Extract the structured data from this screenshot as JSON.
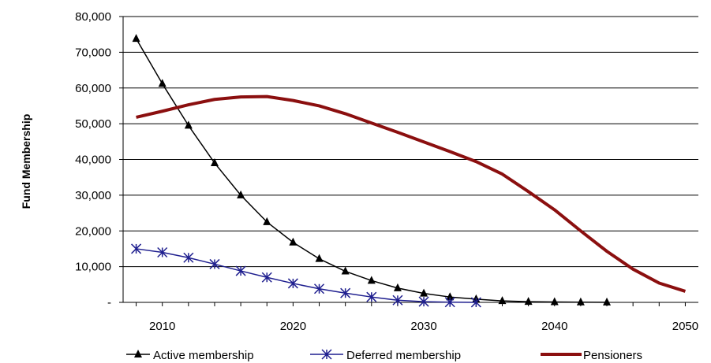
{
  "chart_data": {
    "type": "line",
    "ylabel": "Fund Membership",
    "xlabel": "",
    "xlim": [
      2007,
      2051
    ],
    "ylim": [
      0,
      80000
    ],
    "grid": "horizontal",
    "legend_position": "bottom",
    "x_ticks": [
      2010,
      2020,
      2030,
      2040,
      2050
    ],
    "x_tick_labels": [
      "2010",
      "2020",
      "2030",
      "2040",
      "2050"
    ],
    "y_ticks": [
      0,
      10000,
      20000,
      30000,
      40000,
      50000,
      60000,
      70000,
      80000
    ],
    "y_tick_labels": [
      "-",
      "10,000",
      "20,000",
      "30,000",
      "40,000",
      "50,000",
      "60,000",
      "70,000",
      "80,000"
    ],
    "series": [
      {
        "name": "Active membership",
        "color": "#000000",
        "marker": "triangle",
        "x": [
          2008,
          2010,
          2012,
          2014,
          2016,
          2018,
          2020,
          2022,
          2024,
          2026,
          2028,
          2030,
          2032,
          2034,
          2036,
          2038,
          2040,
          2042,
          2044
        ],
        "values": [
          73800,
          61200,
          49500,
          39000,
          30000,
          22500,
          16800,
          12200,
          8700,
          6100,
          4000,
          2500,
          1500,
          900,
          400,
          200,
          100,
          50,
          20
        ]
      },
      {
        "name": "Deferred membership",
        "color": "#1f1f8f",
        "marker": "asterisk",
        "x": [
          2008,
          2010,
          2012,
          2014,
          2016,
          2018,
          2020,
          2022,
          2024,
          2026,
          2028,
          2030,
          2032,
          2034
        ],
        "values": [
          15000,
          14000,
          12500,
          10700,
          8800,
          7000,
          5300,
          3800,
          2600,
          1500,
          600,
          200,
          50,
          10
        ]
      },
      {
        "name": "Pensioners",
        "color": "#8b0f0f",
        "marker": "none",
        "x": [
          2008,
          2010,
          2012,
          2014,
          2016,
          2018,
          2020,
          2022,
          2024,
          2026,
          2028,
          2030,
          2032,
          2034,
          2036,
          2038,
          2040,
          2042,
          2044,
          2046,
          2048,
          2050
        ],
        "values": [
          51800,
          53500,
          55300,
          56800,
          57500,
          57600,
          56500,
          55000,
          52800,
          50200,
          47600,
          44900,
          42200,
          39400,
          35900,
          31000,
          25900,
          20000,
          14300,
          9300,
          5400,
          3100
        ]
      }
    ]
  }
}
